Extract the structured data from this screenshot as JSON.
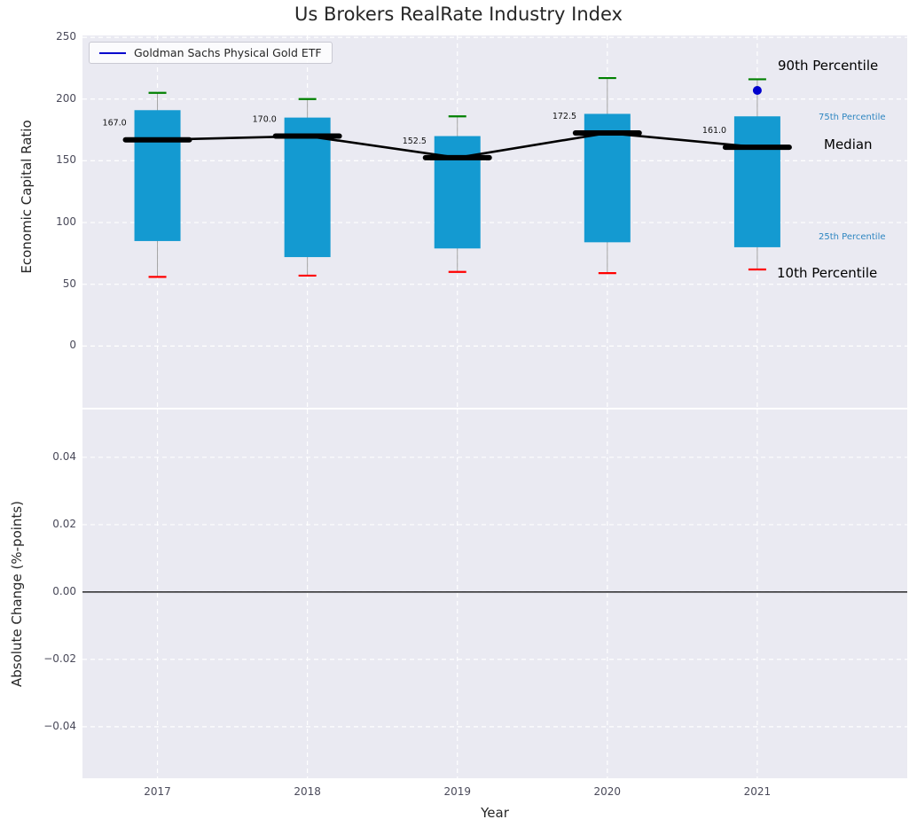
{
  "chart_data": [
    {
      "type": "boxplot",
      "title": "Us Brokers RealRate Industry Index",
      "ylabel": "Economic Capital Ratio",
      "legend_label": "Goldman Sachs Physical Gold ETF",
      "legend_position": "upper left",
      "grid": "white-dashed",
      "categories": [
        "2017",
        "2018",
        "2019",
        "2020",
        "2021"
      ],
      "xlim": [
        -0.5,
        5.0
      ],
      "ylim": [
        -50,
        251.5
      ],
      "yticks": [
        0,
        50,
        100,
        150,
        200,
        250
      ],
      "series": [
        {
          "year": "2017",
          "p10": 56,
          "p25": 85,
          "median": 167.0,
          "p75": 191,
          "p90": 205
        },
        {
          "year": "2018",
          "p10": 57,
          "p25": 72,
          "median": 170.0,
          "p75": 185,
          "p90": 200
        },
        {
          "year": "2019",
          "p10": 60,
          "p25": 79,
          "median": 152.5,
          "p75": 170,
          "p90": 186
        },
        {
          "year": "2020",
          "p10": 59,
          "p25": 84,
          "median": 172.5,
          "p75": 188,
          "p90": 217
        },
        {
          "year": "2021",
          "p10": 62,
          "p25": 80,
          "median": 161.0,
          "p75": 186,
          "p90": 216
        }
      ],
      "median_labels": [
        "167.0",
        "170.0",
        "152.5",
        "172.5",
        "161.0"
      ],
      "etf_point": {
        "year": "2021",
        "value": 207
      },
      "annotations": [
        {
          "text": "90th Percentile",
          "size": "large",
          "color": "#000000"
        },
        {
          "text": "75th Percentile",
          "size": "small",
          "color": "#2e86c1"
        },
        {
          "text": "Median",
          "size": "large",
          "color": "#000000"
        },
        {
          "text": "25th Percentile",
          "size": "small",
          "color": "#2e86c1"
        },
        {
          "text": "10th Percentile",
          "size": "large",
          "color": "#000000"
        }
      ],
      "colors": {
        "box": "#149ad1",
        "cap_90": "#008000",
        "cap_10": "#ff0000",
        "whisker": "#a3a3a3",
        "median": "#000000",
        "etf": "#0000cd",
        "plot_bg": "#eaeaf2",
        "grid": "#ffffff"
      }
    },
    {
      "type": "line",
      "ylabel": "Absolute Change (%-points)",
      "xlabel": "Year",
      "ylim": [
        -0.0553,
        0.0542
      ],
      "yticks": [
        0.04,
        0.02,
        0.0,
        -0.02,
        -0.04
      ],
      "baseline": 0,
      "values": []
    }
  ]
}
